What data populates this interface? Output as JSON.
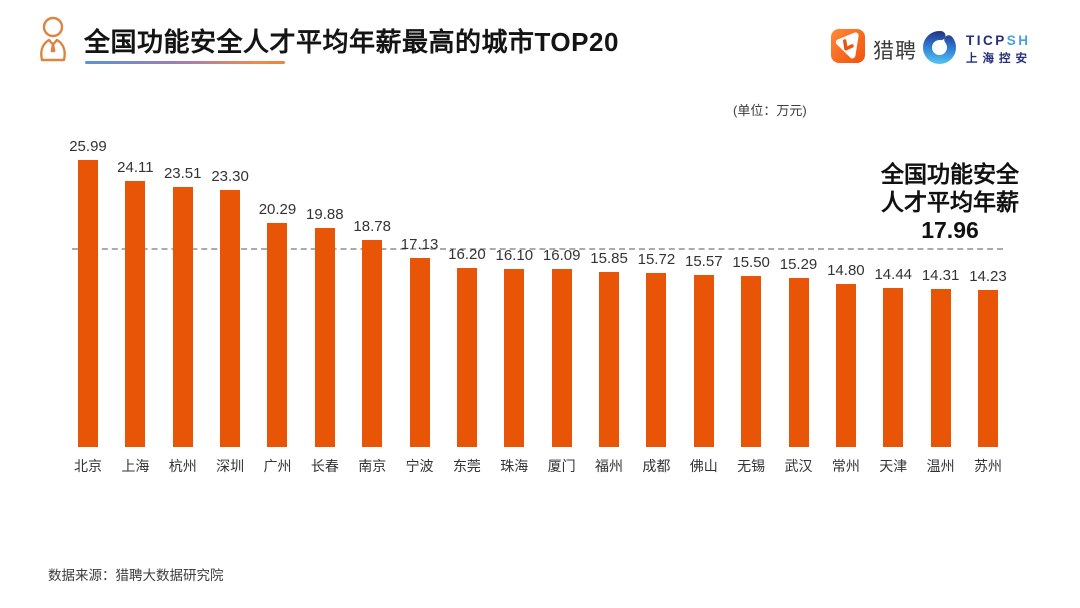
{
  "header": {
    "title": "全国功能安全人才平均年薪最高的城市TOP20",
    "liepin_label": "猎聘",
    "ticpsh": {
      "latin_dark": "TICP",
      "latin_blue": "SH",
      "cn": "上海控安"
    }
  },
  "chart": {
    "unit_label": "(单位：万元)"
  },
  "annotation": {
    "line1": "全国功能安全",
    "line2": "人才平均年薪",
    "value": "17.96"
  },
  "footer": {
    "source": "数据来源：猎聘大数据研究院"
  },
  "colors": {
    "bar": "#E85507",
    "dashed_line": "#ABABAB",
    "title_text": "#141414",
    "label_text": "#333333",
    "accent_gradient_start": "#5D92D1",
    "accent_gradient_end": "#F0823C",
    "liepin_orange": "#F4530A",
    "ticpsh_navy": "#232E7D",
    "ticpsh_blue": "#4BA0DB"
  },
  "chart_data": {
    "type": "bar",
    "title": "全国功能安全人才平均年薪最高的城市TOP20",
    "unit": "万元",
    "categories": [
      "北京",
      "上海",
      "杭州",
      "深圳",
      "广州",
      "长春",
      "南京",
      "宁波",
      "东莞",
      "珠海",
      "厦门",
      "福州",
      "成都",
      "佛山",
      "无锡",
      "武汉",
      "常州",
      "天津",
      "温州",
      "苏州"
    ],
    "values": [
      25.99,
      24.11,
      23.51,
      23.3,
      20.29,
      19.88,
      18.78,
      17.13,
      16.2,
      16.1,
      16.09,
      15.85,
      15.72,
      15.57,
      15.5,
      15.29,
      14.8,
      14.44,
      14.31,
      14.23
    ],
    "value_labels": [
      "25.99",
      "24.11",
      "23.51",
      "23.30",
      "20.29",
      "19.88",
      "18.78",
      "17.13",
      "16.20",
      "16.10",
      "16.09",
      "15.85",
      "15.72",
      "15.57",
      "15.50",
      "15.29",
      "14.80",
      "14.44",
      "14.31",
      "14.23"
    ],
    "average_line": {
      "value": 17.96,
      "label": "17.96",
      "annotation": "全国功能安全人才平均年薪17.96"
    },
    "ylim": [
      0,
      27
    ],
    "grid": false,
    "legend": "none",
    "bar_color": "#E85507"
  }
}
